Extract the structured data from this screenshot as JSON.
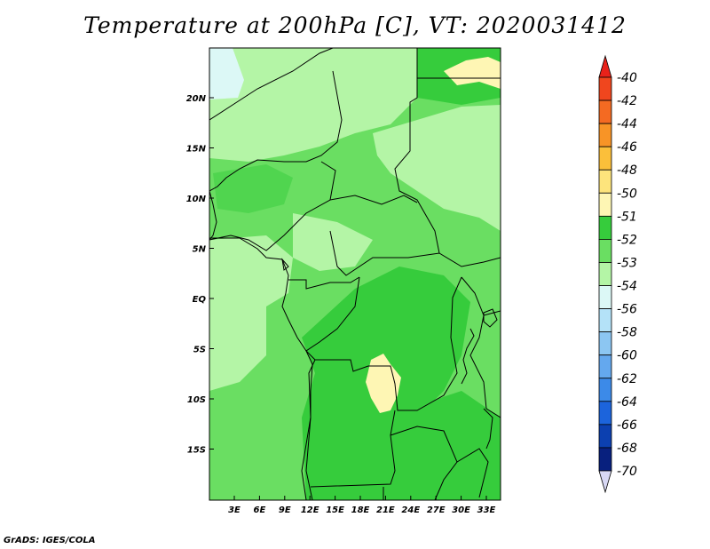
{
  "title": "Temperature at 200hPa [C], VT: 2020031412",
  "credit": "GrADS: IGES/COLA",
  "map": {
    "lat_labels": [
      "20N",
      "15N",
      "10N",
      "5N",
      "EQ",
      "5S",
      "10S",
      "15S"
    ],
    "lon_labels": [
      "3E",
      "6E",
      "9E",
      "12E",
      "15E",
      "18E",
      "21E",
      "24E",
      "27E",
      "30E",
      "33E"
    ]
  },
  "legend": {
    "levels": [
      {
        "label": "-40",
        "color": "#e8221a"
      },
      {
        "label": "-42",
        "color": "#f0461e"
      },
      {
        "label": "-44",
        "color": "#f46a22"
      },
      {
        "label": "-46",
        "color": "#f89426"
      },
      {
        "label": "-48",
        "color": "#fbbf3a"
      },
      {
        "label": "-50",
        "color": "#fde47c"
      },
      {
        "label": "-51",
        "color": "#fef6b4"
      },
      {
        "label": "-52",
        "color": "#36cc3c"
      },
      {
        "label": "-53",
        "color": "#6ade62"
      },
      {
        "label": "-54",
        "color": "#b4f5a6"
      },
      {
        "label": "-56",
        "color": "#dcf8f6"
      },
      {
        "label": "-58",
        "color": "#b4e2f8"
      },
      {
        "label": "-60",
        "color": "#8cc6f2"
      },
      {
        "label": "-62",
        "color": "#64a8ee"
      },
      {
        "label": "-64",
        "color": "#3c8ae8"
      },
      {
        "label": "-66",
        "color": "#1c64dc"
      },
      {
        "label": "-68",
        "color": "#0c40b0"
      },
      {
        "label": "-70",
        "color": "#08207e"
      }
    ],
    "top_arrow_color": "#e8221a",
    "bottom_arrow_color": "#d8d8f4"
  }
}
